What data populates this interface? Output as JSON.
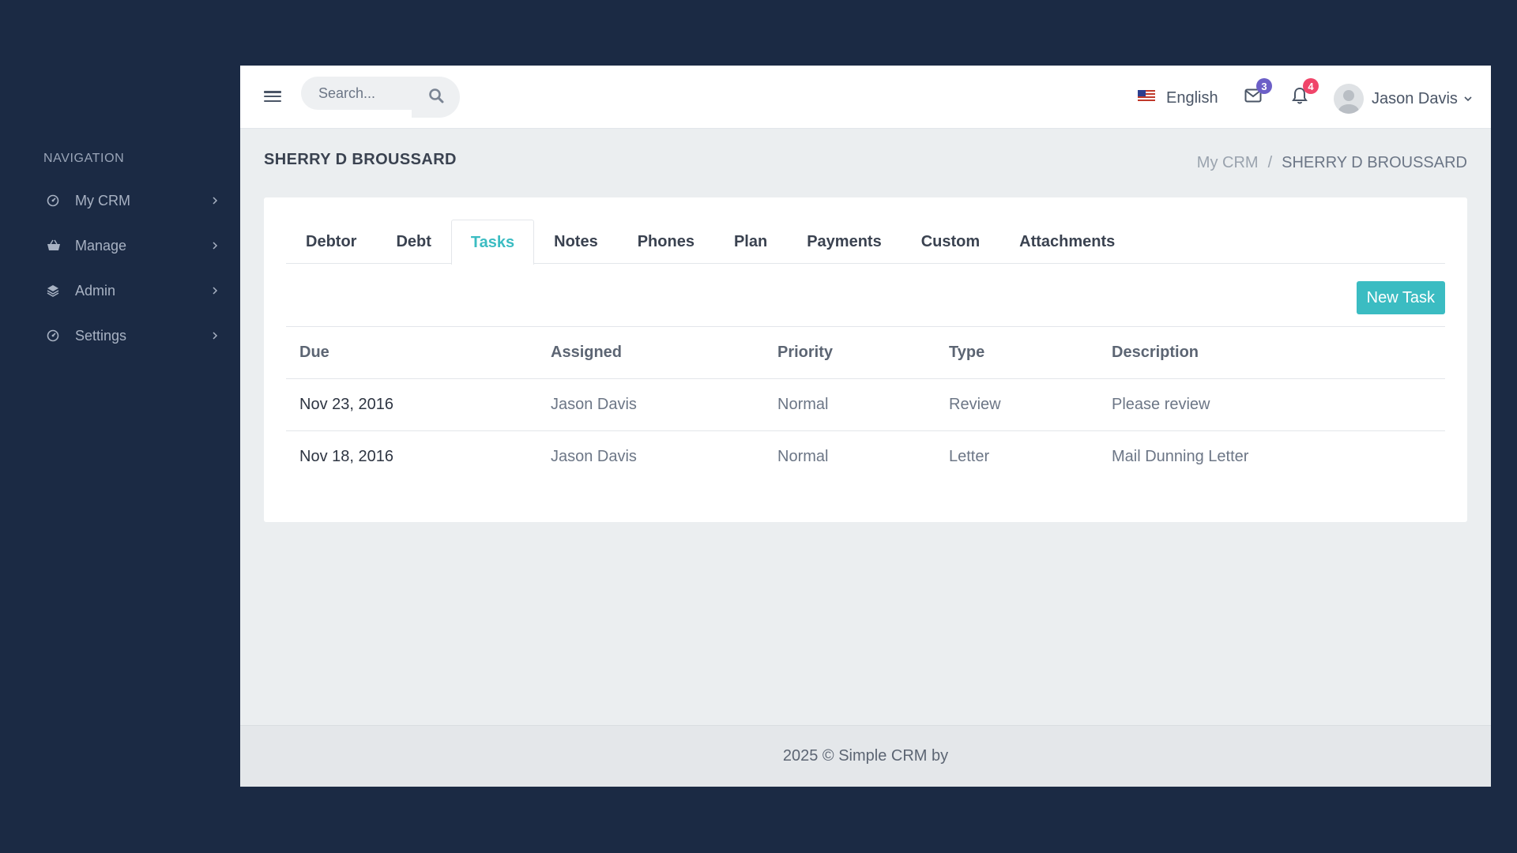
{
  "sidebar": {
    "heading": "NAVIGATION",
    "items": [
      {
        "label": "My CRM",
        "icon": "dashboard-icon"
      },
      {
        "label": "Manage",
        "icon": "basket-icon"
      },
      {
        "label": "Admin",
        "icon": "layers-icon"
      },
      {
        "label": "Settings",
        "icon": "dashboard-icon"
      }
    ]
  },
  "topbar": {
    "search_placeholder": "Search...",
    "language": "English",
    "messages_count": "3",
    "notifications_count": "4",
    "user_name": "Jason Davis"
  },
  "page": {
    "title": "SHERRY D BROUSSARD",
    "breadcrumb": {
      "home": "My CRM",
      "separator": "/",
      "current": "SHERRY D BROUSSARD"
    }
  },
  "tabs": [
    "Debtor",
    "Debt",
    "Tasks",
    "Notes",
    "Phones",
    "Plan",
    "Payments",
    "Custom",
    "Attachments"
  ],
  "active_tab": "Tasks",
  "new_task_label": "New Task",
  "table": {
    "headers": {
      "due": "Due",
      "assigned": "Assigned",
      "priority": "Priority",
      "type": "Type",
      "description": "Description"
    },
    "rows": [
      {
        "due": "Nov 23, 2016",
        "assigned": "Jason Davis",
        "priority": "Normal",
        "type": "Review",
        "description": "Please review"
      },
      {
        "due": "Nov 18, 2016",
        "assigned": "Jason Davis",
        "priority": "Normal",
        "type": "Letter",
        "description": "Mail Dunning Letter"
      }
    ]
  },
  "footer": "2025 © Simple CRM by",
  "colors": {
    "sidebar_bg": "#1b2a44",
    "accent": "#3bbcc2",
    "badge_messages": "#6c5fc7",
    "badge_notifications": "#f0456a"
  }
}
